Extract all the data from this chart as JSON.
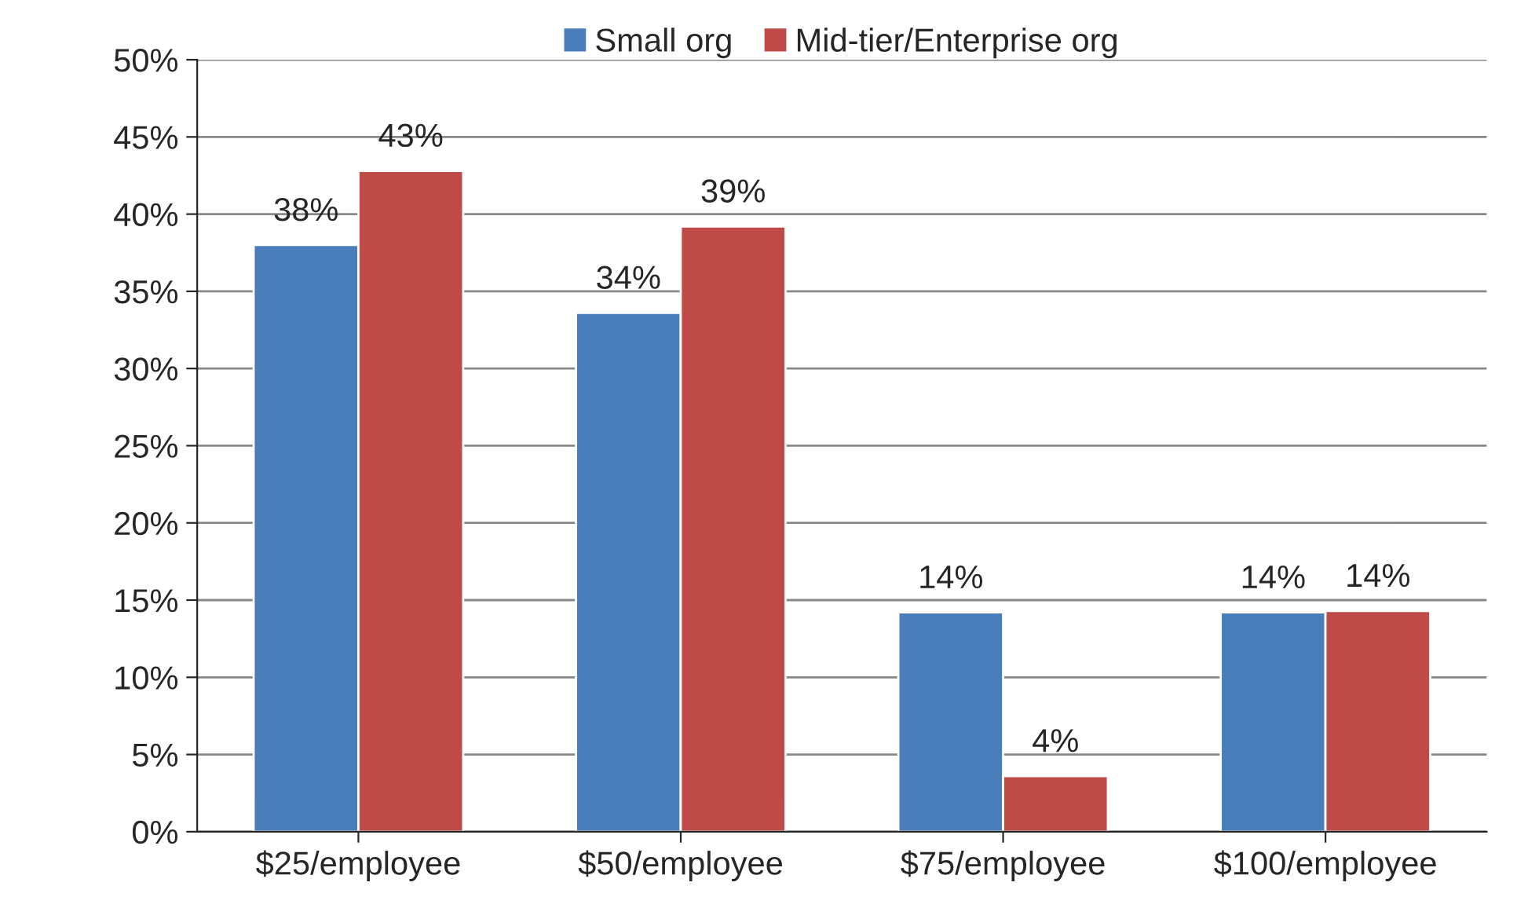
{
  "chart_data": {
    "type": "bar",
    "categories": [
      "$25/employee",
      "$50/employee",
      "$75/employee",
      "$100/employee"
    ],
    "series": [
      {
        "name": "Small org",
        "color": "#4a7ebb",
        "values": [
          38,
          33.6,
          14.2,
          14.2
        ],
        "value_labels": [
          "38%",
          "34%",
          "14%",
          "14%"
        ]
      },
      {
        "name": "Mid-tier/Enterprise org",
        "color": "#be4b48",
        "values": [
          42.8,
          39.2,
          3.6,
          14.3
        ],
        "value_labels": [
          "43%",
          "39%",
          "4%",
          "14%"
        ]
      }
    ],
    "ylim": [
      0,
      50
    ],
    "yticks": [
      {
        "value": 0,
        "label": "0%"
      },
      {
        "value": 5,
        "label": "5%"
      },
      {
        "value": 10,
        "label": "10%"
      },
      {
        "value": 15,
        "label": "15%"
      },
      {
        "value": 20,
        "label": "20%"
      },
      {
        "value": 25,
        "label": "25%"
      },
      {
        "value": 30,
        "label": "30%"
      },
      {
        "value": 35,
        "label": "35%"
      },
      {
        "value": 40,
        "label": "40%"
      },
      {
        "value": 45,
        "label": "45%"
      },
      {
        "value": 50,
        "label": "50%"
      }
    ],
    "grid": "y",
    "legend": "top"
  }
}
